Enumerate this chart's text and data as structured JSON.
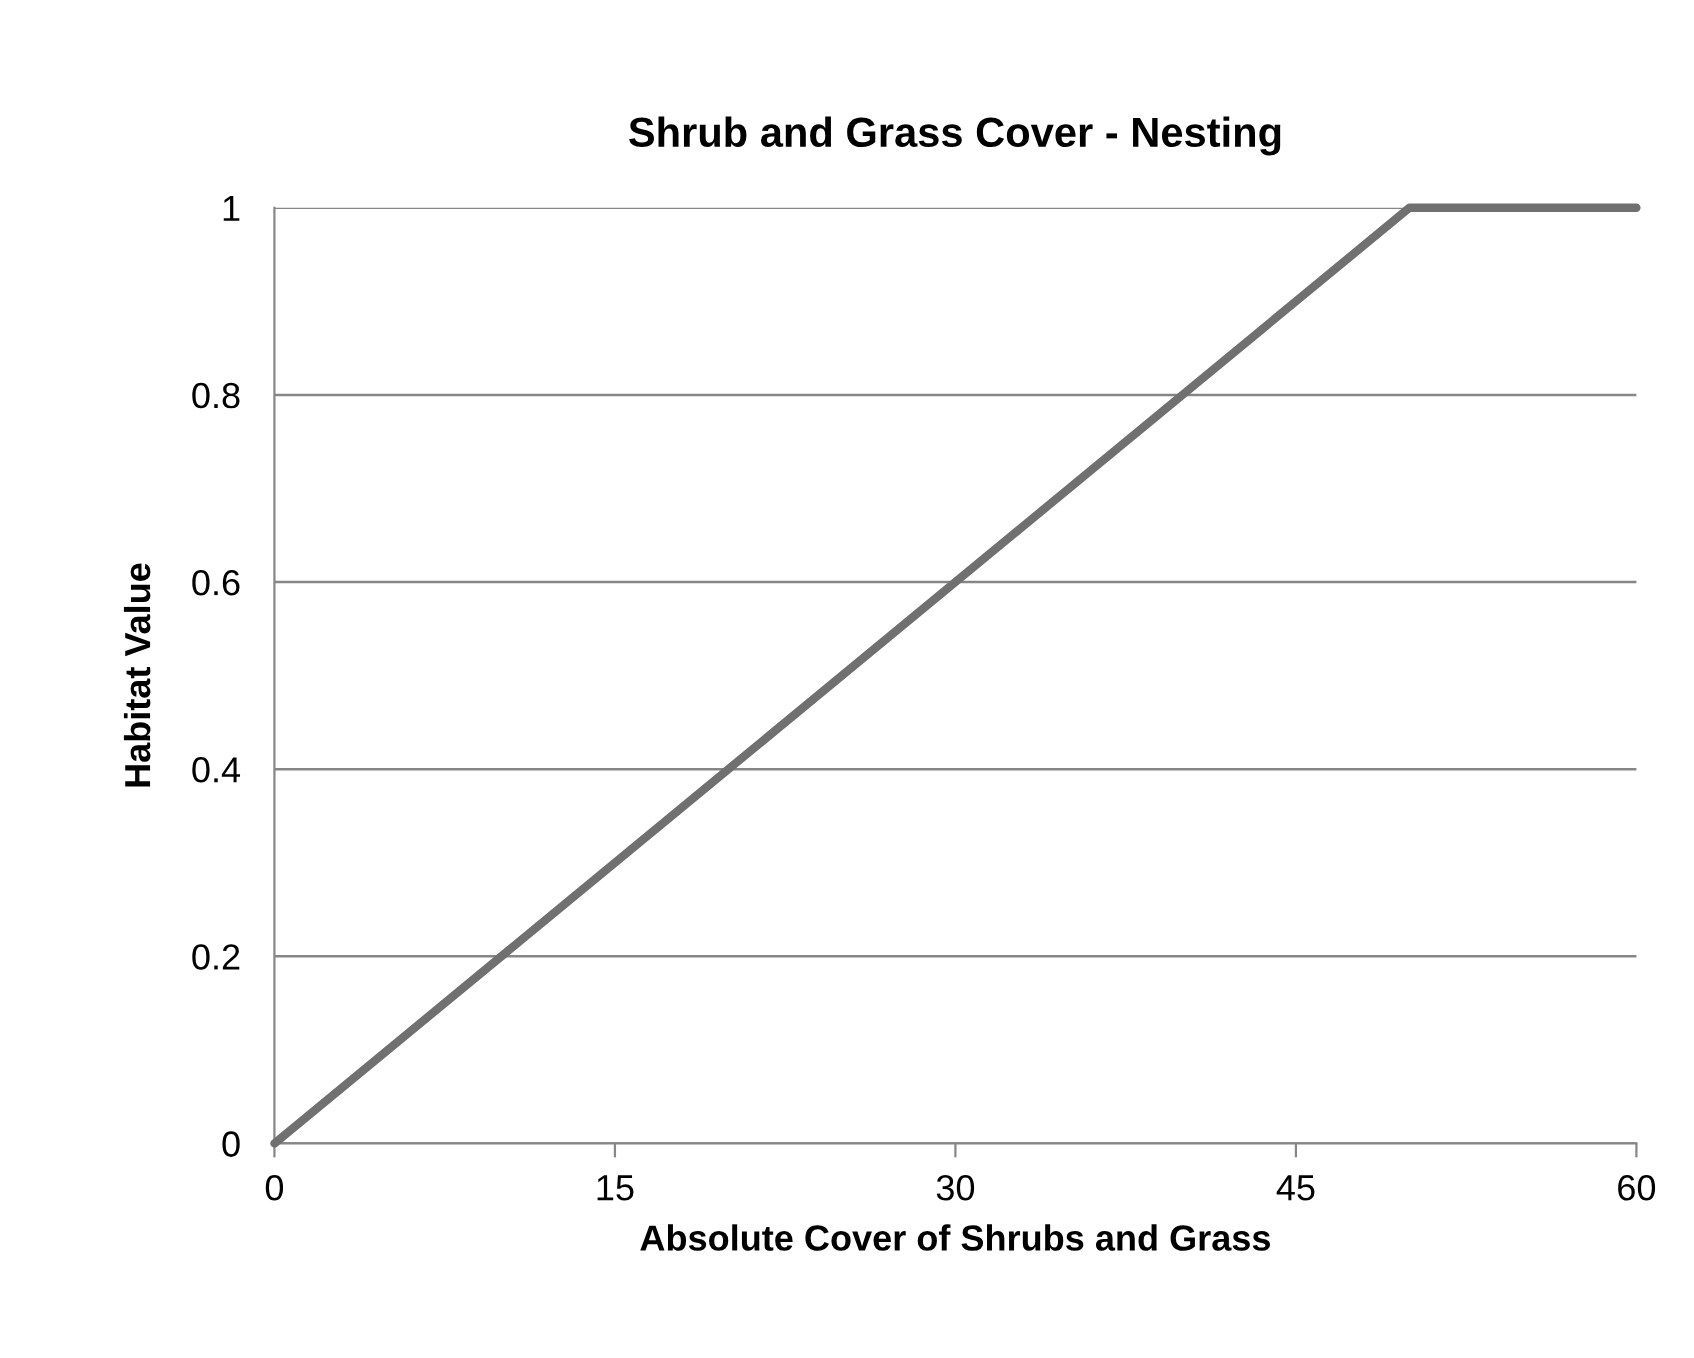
{
  "chart_data": {
    "type": "line",
    "title": "Shrub and Grass Cover - Nesting",
    "xlabel": "Absolute Cover of Shrubs and Grass",
    "ylabel": "Habitat Value",
    "x": [
      0,
      50,
      60
    ],
    "series": [
      {
        "color": "#707070",
        "values": [
          0,
          1,
          1
        ]
      }
    ],
    "xlim": [
      0,
      60
    ],
    "xticks": [
      0,
      15,
      30,
      45,
      60
    ],
    "ylim": [
      0,
      1
    ],
    "yticks": [
      0,
      0.2,
      0.4,
      0.6,
      0.8,
      1
    ],
    "grid": "y",
    "legend": false,
    "marker": "none",
    "line_style": "solid"
  }
}
